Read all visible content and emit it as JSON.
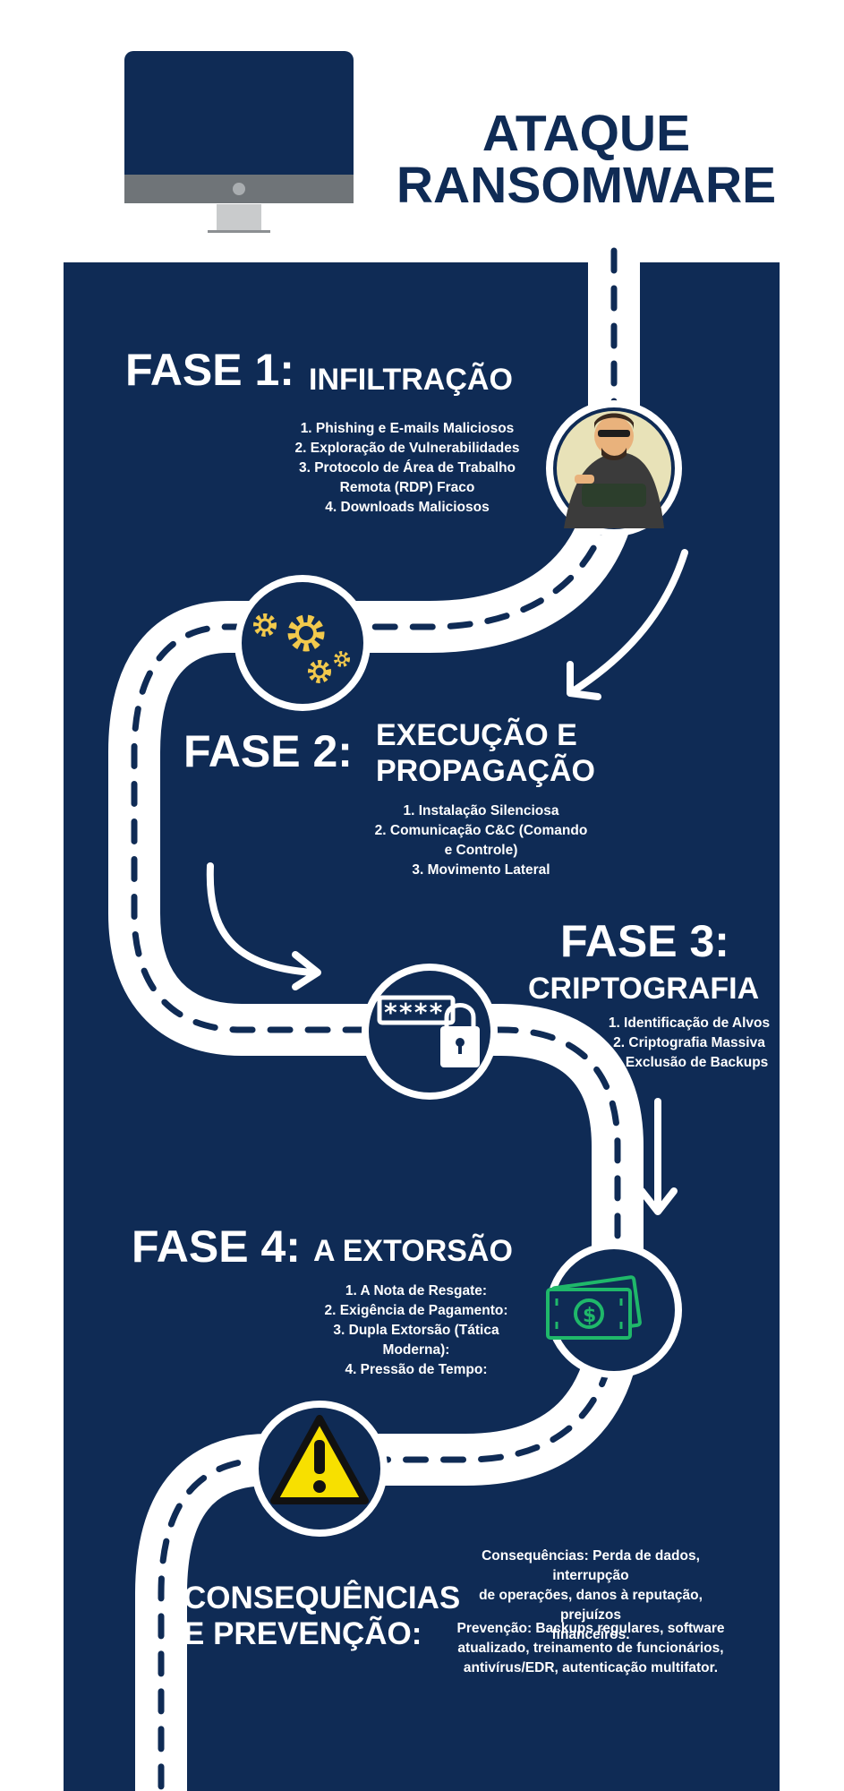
{
  "title": {
    "line1": "ATAQUE",
    "line2": "RANSOMWARE"
  },
  "phase1": {
    "label": "FASE 1:",
    "name": "INFILTRAÇÃO",
    "items": [
      "1. Phishing e E-mails Maliciosos",
      "2. Exploração de Vulnerabilidades",
      "3. Protocolo de Área de Trabalho",
      "Remota (RDP) Fraco",
      "4. Downloads Maliciosos"
    ]
  },
  "phase2": {
    "label": "FASE 2:",
    "name_line1": "EXECUÇÃO E",
    "name_line2": "PROPAGAÇÃO",
    "items": [
      "1. Instalação Silenciosa",
      "2. Comunicação C&C (Comando",
      "e Controle)",
      "3. Movimento Lateral"
    ]
  },
  "phase3": {
    "label": "FASE 3:",
    "name": "CRIPTOGRAFIA",
    "items": [
      "1. Identificação de Alvos",
      "2. Criptografia Massiva",
      "3. Exclusão de Backups"
    ]
  },
  "phase4": {
    "label": "FASE 4:",
    "name": "A EXTORSÃO",
    "items": [
      "1. A Nota de Resgate:",
      "2. Exigência de Pagamento:",
      "3. Dupla Extorsão (Tática",
      "Moderna):",
      "4. Pressão de Tempo:"
    ]
  },
  "final": {
    "heading_line1": "CONSEQUÊNCIAS",
    "heading_line2": "E PREVENÇÃO:",
    "consequences": [
      "Consequências: Perda de dados, interrupção",
      "de operações, danos à reputação, prejuízos",
      "financeiros."
    ],
    "prevention": [
      "Prevenção: Backups regulares, software",
      "atualizado, treinamento de funcionários,",
      "antivírus/EDR, autenticação multifator."
    ]
  },
  "icons": {
    "monitor": "monitor-icon",
    "hacker": "hacker-icon",
    "gears": "gears-icon",
    "password_lock": "password-lock-icon",
    "money": "money-icon",
    "warning": "warning-icon"
  },
  "colors": {
    "navy": "#0f2b55",
    "road": "#ffffff",
    "gear_yellow": "#f2c94c",
    "money_green": "#1fb86a",
    "warning_yellow": "#f7e000"
  }
}
